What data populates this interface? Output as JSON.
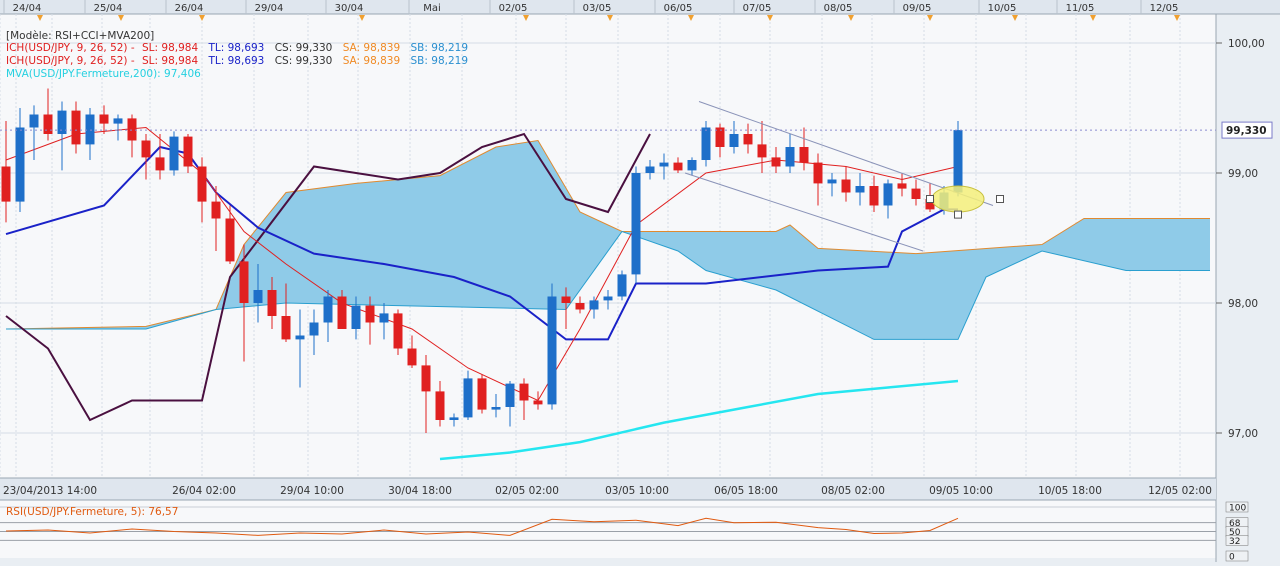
{
  "top_dates": [
    "24/04",
    "25/04",
    "26/04",
    "29/04",
    "30/04",
    "Mai",
    "02/05",
    "03/05",
    "06/05",
    "07/05",
    "08/05",
    "09/05",
    "10/05",
    "11/05",
    "12/05"
  ],
  "bottom_dates": [
    "23/04/2013 14:00",
    "26/04 02:00",
    "29/04 10:00",
    "30/04 18:00",
    "02/05 02:00",
    "03/05 10:00",
    "06/05 18:00",
    "08/05 02:00",
    "09/05 10:00",
    "10/05 18:00",
    "12/05 02:00"
  ],
  "legend": {
    "model": "[Modèle: RSI+CCI+MVA200]",
    "ich_red": {
      "label": "ICH(USD/JPY, 9, 26, 52) -",
      "sl": "SL: 98,984",
      "tl": "TL: 98,693",
      "cs": "CS: 99,330",
      "sa": "SA: 98,839",
      "sb": "SB: 98,219"
    },
    "ich_blue": {
      "label": "ICH(USD/JPY, 9, 26, 52) -",
      "sl": "SL: 98,984",
      "tl": "TL: 98,693",
      "cs": "CS: 99,330",
      "sa": "SA: 98,839",
      "sb": "SB: 98,219"
    },
    "mva": "MVA(USD/JPY.Fermeture,200): 97,406"
  },
  "rsi_legend": "RSI(USD/JPY.Fermeture, 5): 76,57",
  "price_axis": [
    "100,00",
    "99,00",
    "98,00",
    "97,00"
  ],
  "current_price": "99,330",
  "rsi_axis": [
    "100",
    "68",
    "50",
    "32",
    "0"
  ],
  "colors": {
    "bull": "#1e6fc9",
    "bear": "#e02020",
    "kijun": "#1a22c8",
    "tenkan": "#e02020",
    "chikou": "#4a1040",
    "cloud_bull": "#8fcbe8",
    "cloud_bear": "#f5c28f",
    "mva": "#25e6f0",
    "rsi": "#e05a10"
  },
  "chart_data": {
    "type": "candlestick",
    "instrument": "USD/JPY",
    "y_range": [
      96.7,
      100.3
    ],
    "candles_ohlc": [
      [
        99.05,
        99.4,
        98.62,
        98.78
      ],
      [
        98.78,
        99.5,
        98.7,
        99.35
      ],
      [
        99.35,
        99.52,
        99.1,
        99.45
      ],
      [
        99.45,
        99.65,
        99.25,
        99.3
      ],
      [
        99.3,
        99.55,
        99.02,
        99.48
      ],
      [
        99.48,
        99.55,
        99.15,
        99.22
      ],
      [
        99.22,
        99.5,
        99.1,
        99.45
      ],
      [
        99.45,
        99.52,
        99.3,
        99.38
      ],
      [
        99.38,
        99.45,
        99.25,
        99.42
      ],
      [
        99.42,
        99.45,
        99.12,
        99.25
      ],
      [
        99.25,
        99.3,
        98.95,
        99.12
      ],
      [
        99.12,
        99.3,
        98.95,
        99.02
      ],
      [
        99.02,
        99.32,
        98.98,
        99.28
      ],
      [
        99.28,
        99.3,
        99.0,
        99.05
      ],
      [
        99.05,
        99.12,
        98.62,
        98.78
      ],
      [
        98.78,
        98.9,
        98.4,
        98.65
      ],
      [
        98.65,
        98.75,
        98.3,
        98.32
      ],
      [
        98.32,
        98.45,
        97.55,
        98.0
      ],
      [
        98.0,
        98.3,
        97.85,
        98.1
      ],
      [
        98.1,
        98.2,
        97.8,
        97.9
      ],
      [
        97.9,
        98.15,
        97.7,
        97.72
      ],
      [
        97.72,
        97.95,
        97.35,
        97.75
      ],
      [
        97.75,
        97.95,
        97.6,
        97.85
      ],
      [
        97.85,
        98.1,
        97.7,
        98.05
      ],
      [
        98.05,
        98.1,
        97.82,
        97.8
      ],
      [
        97.8,
        98.05,
        97.72,
        97.98
      ],
      [
        97.98,
        98.05,
        97.68,
        97.85
      ],
      [
        97.85,
        98.0,
        97.72,
        97.92
      ],
      [
        97.92,
        97.95,
        97.6,
        97.65
      ],
      [
        97.65,
        97.75,
        97.5,
        97.52
      ],
      [
        97.52,
        97.6,
        97.0,
        97.32
      ],
      [
        97.32,
        97.4,
        97.05,
        97.1
      ],
      [
        97.1,
        97.15,
        97.05,
        97.12
      ],
      [
        97.12,
        97.48,
        97.1,
        97.42
      ],
      [
        97.42,
        97.45,
        97.15,
        97.18
      ],
      [
        97.18,
        97.3,
        97.12,
        97.2
      ],
      [
        97.2,
        97.4,
        97.05,
        97.38
      ],
      [
        97.38,
        97.42,
        97.1,
        97.25
      ],
      [
        97.25,
        97.32,
        97.18,
        97.22
      ],
      [
        97.22,
        98.15,
        97.18,
        98.05
      ],
      [
        98.05,
        98.12,
        97.8,
        98.0
      ],
      [
        98.0,
        98.05,
        97.92,
        97.95
      ],
      [
        97.95,
        98.05,
        97.88,
        98.02
      ],
      [
        98.02,
        98.1,
        97.95,
        98.05
      ],
      [
        98.05,
        98.25,
        98.02,
        98.22
      ],
      [
        98.22,
        99.05,
        98.15,
        99.0
      ],
      [
        99.0,
        99.1,
        98.95,
        99.05
      ],
      [
        99.05,
        99.15,
        98.95,
        99.08
      ],
      [
        99.08,
        99.12,
        99.0,
        99.02
      ],
      [
        99.02,
        99.12,
        98.98,
        99.1
      ],
      [
        99.1,
        99.4,
        99.05,
        99.35
      ],
      [
        99.35,
        99.38,
        99.12,
        99.2
      ],
      [
        99.2,
        99.4,
        99.15,
        99.3
      ],
      [
        99.3,
        99.38,
        99.15,
        99.22
      ],
      [
        99.22,
        99.4,
        99.0,
        99.12
      ],
      [
        99.12,
        99.2,
        99.0,
        99.05
      ],
      [
        99.05,
        99.3,
        99.0,
        99.2
      ],
      [
        99.2,
        99.35,
        99.02,
        99.08
      ],
      [
        99.08,
        99.15,
        98.75,
        98.92
      ],
      [
        98.92,
        99.0,
        98.82,
        98.95
      ],
      [
        98.95,
        99.05,
        98.78,
        98.85
      ],
      [
        98.85,
        99.0,
        98.75,
        98.9
      ],
      [
        98.9,
        98.98,
        98.7,
        98.75
      ],
      [
        98.75,
        98.95,
        98.65,
        98.92
      ],
      [
        98.92,
        99.0,
        98.82,
        98.88
      ],
      [
        98.88,
        98.95,
        98.75,
        98.8
      ],
      [
        98.8,
        98.92,
        98.7,
        98.72
      ],
      [
        98.72,
        98.9,
        98.68,
        98.85
      ],
      [
        98.85,
        99.4,
        98.82,
        99.33
      ]
    ],
    "tenkan": [
      [
        0,
        99.1
      ],
      [
        5,
        99.3
      ],
      [
        10,
        99.35
      ],
      [
        14,
        99.0
      ],
      [
        17,
        98.55
      ],
      [
        20,
        98.3
      ],
      [
        24,
        98.0
      ],
      [
        29,
        97.8
      ],
      [
        33,
        97.5
      ],
      [
        38,
        97.25
      ],
      [
        41,
        97.8
      ],
      [
        45,
        98.6
      ],
      [
        50,
        99.0
      ],
      [
        55,
        99.1
      ],
      [
        60,
        99.05
      ],
      [
        64,
        98.95
      ],
      [
        68,
        99.05
      ]
    ],
    "kijun": [
      [
        0,
        98.53
      ],
      [
        7,
        98.75
      ],
      [
        11,
        99.2
      ],
      [
        13,
        99.15
      ],
      [
        15,
        98.85
      ],
      [
        18,
        98.58
      ],
      [
        22,
        98.38
      ],
      [
        27,
        98.3
      ],
      [
        32,
        98.2
      ],
      [
        36,
        98.05
      ],
      [
        40,
        97.72
      ],
      [
        43,
        97.72
      ],
      [
        45,
        98.15
      ],
      [
        50,
        98.15
      ],
      [
        58,
        98.25
      ],
      [
        63,
        98.28
      ],
      [
        64,
        98.55
      ],
      [
        67,
        98.72
      ],
      [
        68,
        98.72
      ]
    ],
    "chikou": [
      [
        0,
        97.9
      ],
      [
        3,
        97.65
      ],
      [
        6,
        97.1
      ],
      [
        9,
        97.25
      ],
      [
        14,
        97.25
      ],
      [
        16,
        98.2
      ],
      [
        22,
        99.05
      ],
      [
        25,
        99.0
      ],
      [
        28,
        98.95
      ],
      [
        31,
        99.0
      ],
      [
        34,
        99.2
      ],
      [
        37,
        99.3
      ],
      [
        40,
        98.8
      ],
      [
        43,
        98.7
      ],
      [
        46,
        99.3
      ]
    ],
    "senkou_a": [
      [
        0,
        97.8
      ],
      [
        10,
        97.82
      ],
      [
        15,
        97.95
      ],
      [
        17,
        98.45
      ],
      [
        20,
        98.85
      ],
      [
        25,
        98.92
      ],
      [
        31,
        98.98
      ],
      [
        35,
        99.2
      ],
      [
        38,
        99.25
      ],
      [
        41,
        98.7
      ],
      [
        44,
        98.55
      ],
      [
        55,
        98.55
      ],
      [
        56,
        98.6
      ],
      [
        58,
        98.42
      ],
      [
        65,
        98.38
      ],
      [
        74,
        98.45
      ],
      [
        77,
        98.65
      ],
      [
        86,
        98.65
      ]
    ],
    "senkou_b": [
      [
        0,
        97.8
      ],
      [
        10,
        97.8
      ],
      [
        15,
        97.95
      ],
      [
        20,
        98.0
      ],
      [
        40,
        97.95
      ],
      [
        44,
        98.55
      ],
      [
        48,
        98.4
      ],
      [
        50,
        98.25
      ],
      [
        55,
        98.1
      ],
      [
        62,
        97.72
      ],
      [
        68,
        97.72
      ],
      [
        70,
        98.2
      ],
      [
        74,
        98.4
      ],
      [
        80,
        98.25
      ],
      [
        86,
        98.25
      ]
    ],
    "mva200": [
      [
        31,
        96.8
      ],
      [
        36,
        96.85
      ],
      [
        41,
        96.93
      ],
      [
        47,
        97.08
      ],
      [
        53,
        97.2
      ],
      [
        58,
        97.3
      ],
      [
        63,
        97.35
      ],
      [
        68,
        97.4
      ]
    ],
    "channel_upper": [
      [
        49.5,
        99.55
      ],
      [
        70.5,
        98.75
      ]
    ],
    "channel_lower": [
      [
        48.5,
        99.0
      ],
      [
        65.5,
        98.4
      ]
    ],
    "rsi_values": [
      [
        0,
        51
      ],
      [
        3,
        53
      ],
      [
        6,
        47
      ],
      [
        9,
        55
      ],
      [
        12,
        50
      ],
      [
        15,
        47
      ],
      [
        18,
        42
      ],
      [
        21,
        47
      ],
      [
        24,
        45
      ],
      [
        27,
        53
      ],
      [
        30,
        45
      ],
      [
        33,
        49
      ],
      [
        36,
        42
      ],
      [
        39,
        75
      ],
      [
        42,
        70
      ],
      [
        45,
        73
      ],
      [
        48,
        62
      ],
      [
        50,
        77
      ],
      [
        52,
        68
      ],
      [
        55,
        69
      ],
      [
        58,
        58
      ],
      [
        60,
        54
      ],
      [
        62,
        46
      ],
      [
        64,
        47
      ],
      [
        66,
        52
      ],
      [
        68,
        77
      ]
    ],
    "rsi_range": [
      0,
      100
    ],
    "rsi_levels": [
      68,
      50,
      32
    ]
  }
}
